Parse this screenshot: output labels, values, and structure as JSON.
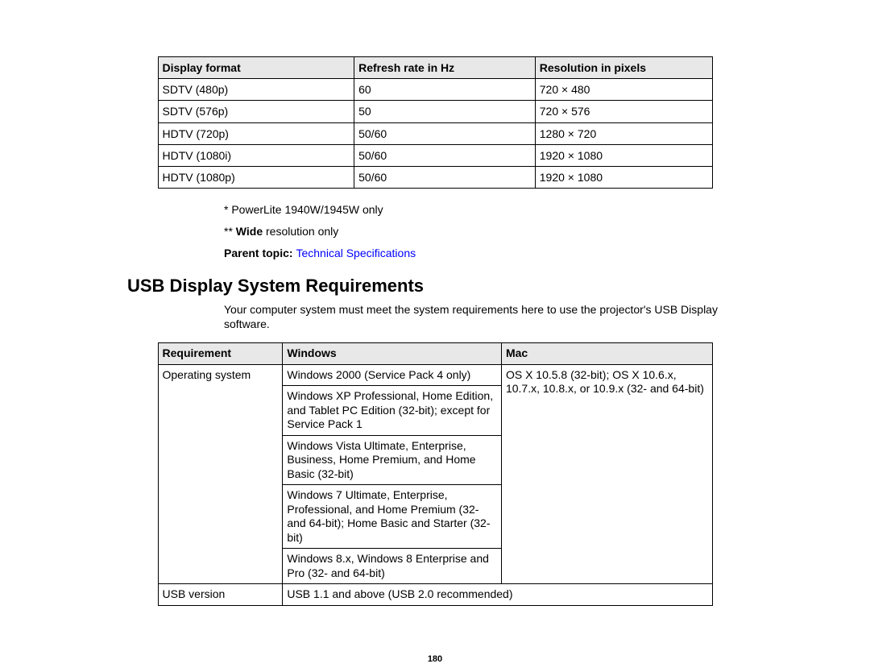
{
  "display_table": {
    "headers": [
      "Display format",
      "Refresh rate in Hz",
      "Resolution in pixels"
    ],
    "rows": [
      [
        "SDTV (480p)",
        "60",
        "720 × 480"
      ],
      [
        "SDTV (576p)",
        "50",
        "720 × 576"
      ],
      [
        "HDTV (720p)",
        "50/60",
        "1280 × 720"
      ],
      [
        "HDTV (1080i)",
        "50/60",
        "1920 × 1080"
      ],
      [
        "HDTV (1080p)",
        "50/60",
        "1920 × 1080"
      ]
    ]
  },
  "notes": {
    "note1": "* PowerLite 1940W/1945W only",
    "note2_prefix": "** ",
    "note2_bold": "Wide",
    "note2_suffix": " resolution only"
  },
  "parent_topic": {
    "label": "Parent topic: ",
    "link": "Technical Specifications"
  },
  "section_heading": "USB Display System Requirements",
  "body_text": "Your computer system must meet the system requirements here to use the projector's USB Display software.",
  "req_table": {
    "headers": [
      "Requirement",
      "Windows",
      "Mac"
    ],
    "os_label": "Operating system",
    "windows_cells": [
      "Windows 2000 (Service Pack 4 only)",
      "Windows XP Professional, Home Edition, and Tablet PC Edition (32-bit); except for Service Pack 1",
      "Windows Vista Ultimate, Enterprise, Business, Home Premium, and Home Basic (32-bit)",
      "Windows 7 Ultimate, Enterprise, Professional, and Home Premium (32- and 64-bit); Home Basic and Starter (32-bit)",
      "Windows 8.x, Windows 8 Enterprise and Pro (32- and 64-bit)"
    ],
    "mac_cell": "OS X 10.5.8 (32-bit); OS X 10.6.x, 10.7.x, 10.8.x, or 10.9.x (32- and 64-bit)",
    "usb_label": "USB version",
    "usb_value": "USB 1.1 and above (USB 2.0 recommended)"
  },
  "page_number": "180"
}
